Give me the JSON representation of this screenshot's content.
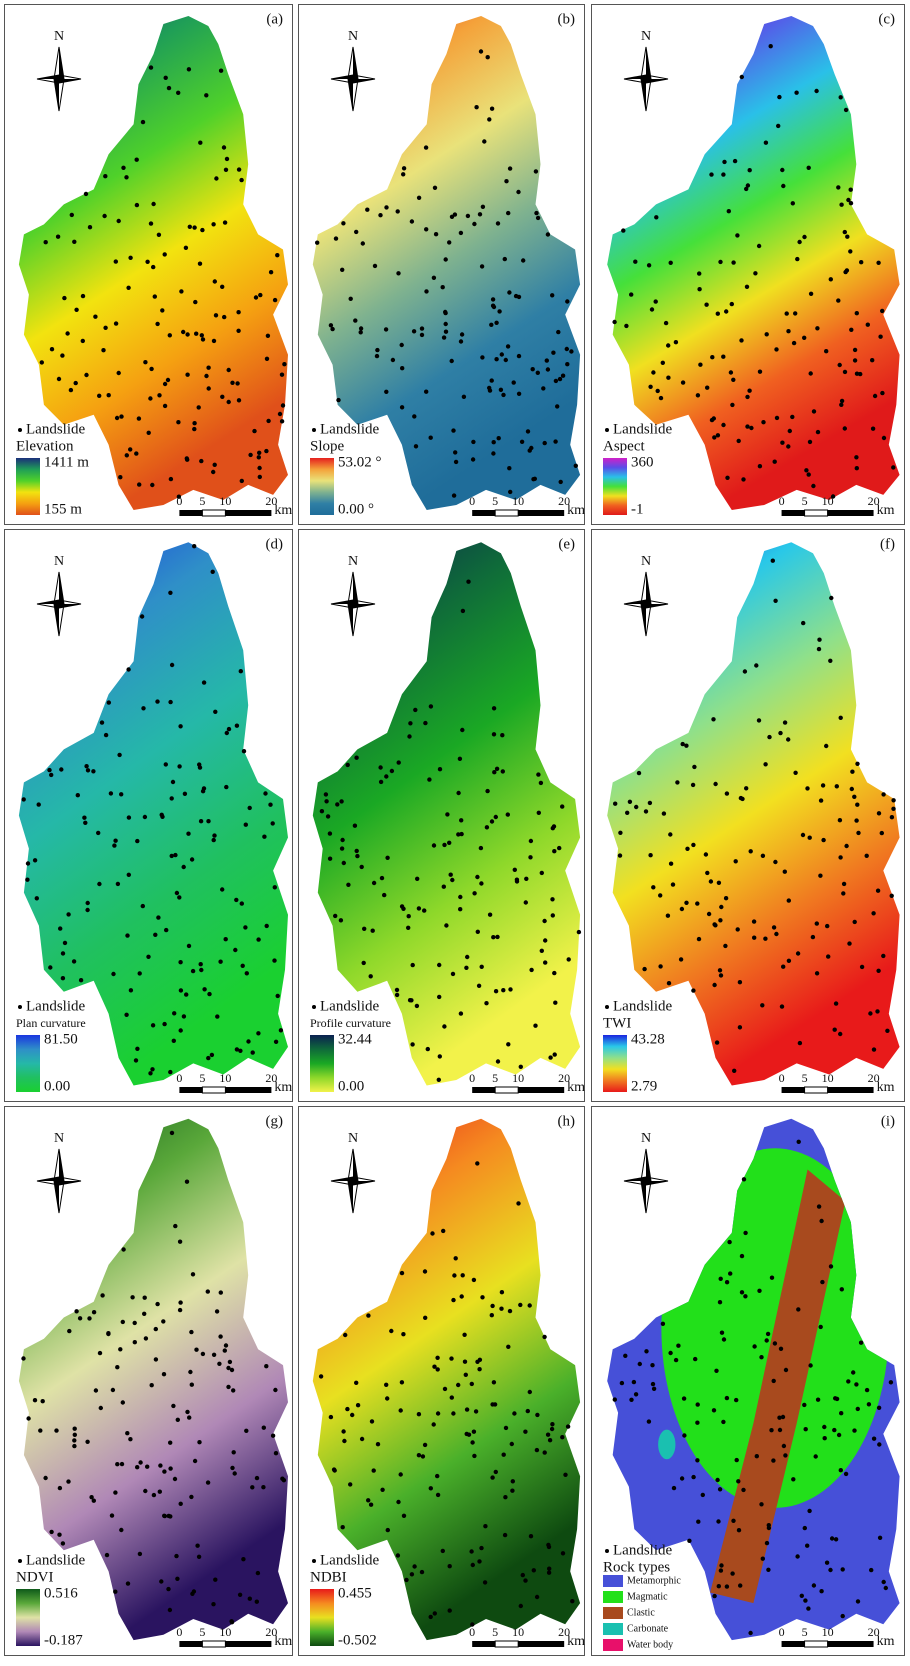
{
  "scale_bar": {
    "labels": [
      "0",
      "5",
      "10",
      "20"
    ],
    "unit": "km"
  },
  "panels": [
    {
      "label": "(a)",
      "north": "N",
      "points_label": "Landslide",
      "legend_title": "Elevation",
      "max_label": "1411 m",
      "min_label": "155 m",
      "ramp": [
        "#1b2f7a",
        "#1f9e57",
        "#4fd12a",
        "#f2e30f",
        "#f5a011",
        "#e0501a"
      ]
    },
    {
      "label": "(b)",
      "north": "N",
      "points_label": "Landslide",
      "legend_title": "Slope",
      "max_label": "53.02 °",
      "min_label": "0.00 °",
      "ramp": [
        "#e5201f",
        "#f4a23a",
        "#e9e27a",
        "#7fb28f",
        "#2f7fa5",
        "#1f6d9a"
      ]
    },
    {
      "label": "(c)",
      "north": "N",
      "points_label": "Landslide",
      "legend_title": "Aspect",
      "max_label": "360",
      "min_label": "-1",
      "ramp": [
        "#d020c8",
        "#5a4ee8",
        "#2ac0e8",
        "#45e03a",
        "#f0e020",
        "#f06020",
        "#e01a1a"
      ]
    },
    {
      "label": "(d)",
      "north": "N",
      "points_label": "Landslide",
      "legend_title": "Plan curvature",
      "max_label": "81.50",
      "min_label": "0.00",
      "ramp": [
        "#1a36e0",
        "#2f8fc8",
        "#25b8a8",
        "#20c060",
        "#1ad030"
      ]
    },
    {
      "label": "(e)",
      "north": "N",
      "points_label": "Landslide",
      "legend_title": "Profile curvature",
      "max_label": "32.44",
      "min_label": "0.00",
      "ramp": [
        "#0a2050",
        "#0f6a3a",
        "#1aa824",
        "#8ed82a",
        "#f2f24a"
      ]
    },
    {
      "label": "(f)",
      "north": "N",
      "points_label": "Landslide",
      "legend_title": "TWI",
      "max_label": "43.28",
      "min_label": "2.79",
      "ramp": [
        "#1a24e0",
        "#29c8e8",
        "#8fe08a",
        "#f2e020",
        "#f07a20",
        "#e81a1a"
      ]
    },
    {
      "label": "(g)",
      "north": "N",
      "points_label": "Landslide",
      "legend_title": "NDVI",
      "max_label": "0.516",
      "min_label": "-0.187",
      "ramp": [
        "#0e5a1a",
        "#5aa83a",
        "#dfe2a6",
        "#b088b6",
        "#2a1460"
      ]
    },
    {
      "label": "(h)",
      "north": "N",
      "points_label": "Landslide",
      "legend_title": "NDBI",
      "max_label": "0.455",
      "min_label": "-0.502",
      "ramp": [
        "#e81a1a",
        "#f58a20",
        "#e8e020",
        "#4ab02a",
        "#0e4a10"
      ]
    },
    {
      "label": "(i)",
      "north": "N",
      "points_label": "Landslide",
      "legend_title": "Rock types",
      "classes": [
        {
          "name": "Metamorphic",
          "color": "#4650d8"
        },
        {
          "name": "Magmatic",
          "color": "#22e01a"
        },
        {
          "name": "Clastic",
          "color": "#a84a1e"
        },
        {
          "name": "Carbonate",
          "color": "#1ac0b0"
        },
        {
          "name": "Water body",
          "color": "#e8106a"
        }
      ]
    }
  ]
}
